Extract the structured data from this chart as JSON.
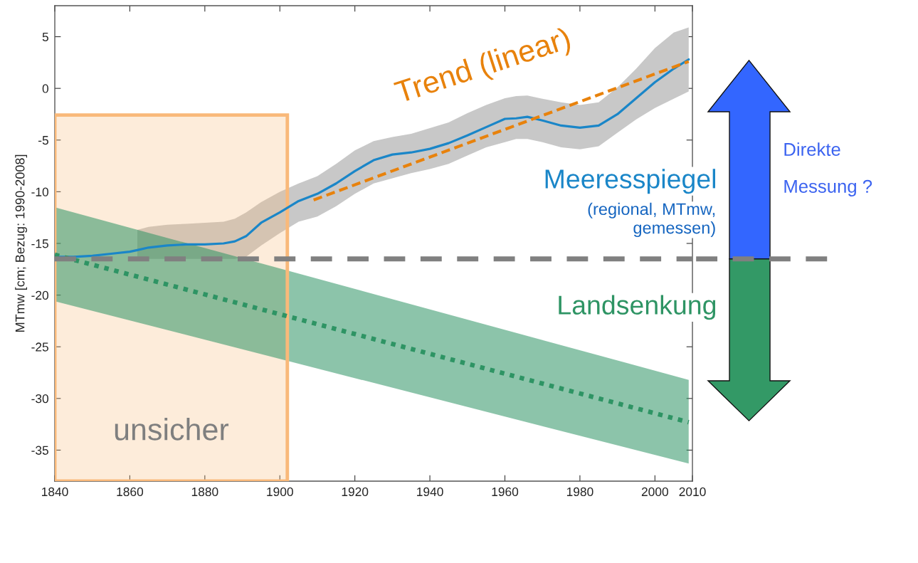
{
  "chart_data": {
    "type": "line",
    "ylabel": "MTmw [cm; Bezug: 1990-2008]",
    "xlim": [
      1840,
      2010
    ],
    "xticks": [
      1840,
      1860,
      1880,
      1900,
      1920,
      1940,
      1960,
      1980,
      2000,
      2010
    ],
    "ylim": [
      -38,
      8
    ],
    "yticks": [
      -35,
      -30,
      -25,
      -20,
      -15,
      -10,
      -5,
      0,
      5
    ],
    "series": [
      {
        "name": "Meeresspiegel",
        "color": "#1a86c8",
        "line_style": "solid",
        "x": [
          1841,
          1845,
          1850,
          1855,
          1860,
          1862,
          1865,
          1870,
          1875,
          1880,
          1885,
          1888,
          1891,
          1895,
          1900,
          1905,
          1910,
          1915,
          1920,
          1925,
          1930,
          1935,
          1940,
          1945,
          1950,
          1955,
          1960,
          1963,
          1966,
          1970,
          1975,
          1980,
          1985,
          1990,
          1995,
          2000,
          2005,
          2009
        ],
        "values": [
          -16.3,
          -16.3,
          -16.2,
          -16.0,
          -15.8,
          -15.65,
          -15.4,
          -15.2,
          -15.1,
          -15.1,
          -15.0,
          -14.8,
          -14.3,
          -13.0,
          -12.0,
          -10.9,
          -10.2,
          -9.2,
          -8.0,
          -6.95,
          -6.4,
          -6.2,
          -5.85,
          -5.3,
          -4.55,
          -3.75,
          -2.95,
          -2.9,
          -2.75,
          -3.1,
          -3.6,
          -3.8,
          -3.6,
          -2.5,
          -0.95,
          0.6,
          1.9,
          2.8
        ],
        "lower": [
          null,
          null,
          null,
          null,
          null,
          -16.5,
          -16.5,
          -16.5,
          -16.5,
          -16.5,
          -16.5,
          -16.5,
          -16.3,
          -15.2,
          -14.0,
          -12.9,
          -12.4,
          -11.4,
          -10.2,
          -9.2,
          -8.7,
          -8.2,
          -7.8,
          -7.3,
          -6.5,
          -5.7,
          -5.2,
          -4.9,
          -4.9,
          -5.2,
          -5.7,
          -5.9,
          -5.6,
          -4.3,
          -3.0,
          -1.9,
          -1.0,
          -0.3
        ],
        "upper": [
          null,
          null,
          null,
          null,
          null,
          -13.7,
          -13.4,
          -13.2,
          -13.1,
          -13.0,
          -12.9,
          -12.6,
          -12.0,
          -11.0,
          -10.0,
          -9.2,
          -8.5,
          -7.3,
          -6.0,
          -5.1,
          -4.7,
          -4.4,
          -3.85,
          -3.3,
          -2.4,
          -1.6,
          -0.95,
          -0.75,
          -0.7,
          -1.0,
          -1.35,
          -1.6,
          -1.35,
          0.1,
          1.9,
          3.9,
          5.4,
          5.9
        ]
      },
      {
        "name": "Trend (linear)",
        "color": "#e8820c",
        "line_style": "dashed",
        "x": [
          1909,
          2009
        ],
        "values": [
          -10.8,
          2.6
        ]
      },
      {
        "name": "Landsenkung",
        "color": "#2e9464",
        "line_style": "dotted",
        "x": [
          1840,
          2009
        ],
        "values": [
          -16.1,
          -32.3
        ],
        "lower": [
          -20.6,
          -36.3
        ],
        "upper": [
          -11.5,
          -28.2
        ]
      }
    ],
    "bands": [
      {
        "axis": "x",
        "from": 1840,
        "to": 1902,
        "label": "unsicher",
        "color": "#f9b97a"
      }
    ],
    "ref_lines": [
      {
        "axis": "y",
        "value": -16.5,
        "color": "#808080",
        "line_style": "dashed"
      }
    ],
    "annotations": [
      "(regional, MTmw,\ngemessen)",
      "Direkte\nMessung ?"
    ],
    "grid": false
  }
}
